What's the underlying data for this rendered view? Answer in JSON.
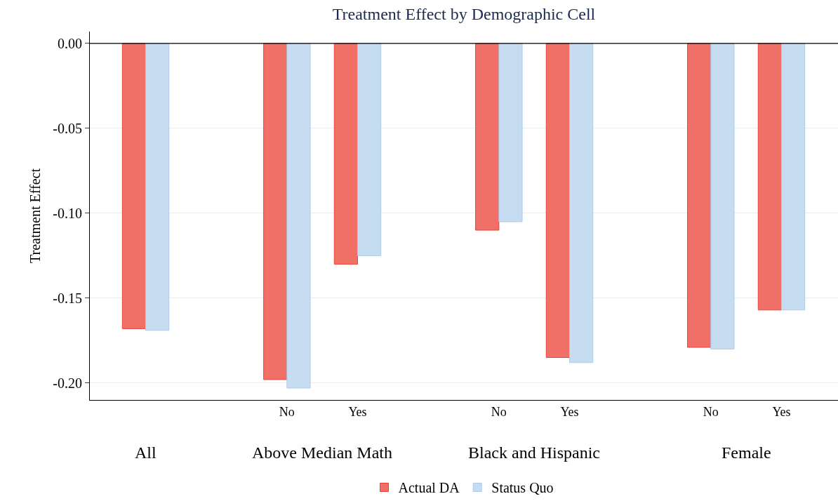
{
  "chart_data": {
    "type": "bar",
    "title": "Treatment Effect by Demographic Cell",
    "ylabel": "Treatment Effect",
    "categories": [
      null,
      "No",
      "Yes",
      "No",
      "Yes",
      "No",
      "Yes"
    ],
    "annotations": [
      "All",
      "Above Median Math",
      "Black and Hispanic",
      "Female"
    ],
    "series": [
      {
        "name": "Actual DA",
        "color": "#f07067",
        "values": [
          -0.168,
          -0.198,
          -0.13,
          -0.11,
          -0.185,
          -0.179,
          -0.157
        ]
      },
      {
        "name": "Status Quo",
        "color": "#c6dcf0",
        "values": [
          -0.169,
          -0.203,
          -0.125,
          -0.105,
          -0.188,
          -0.18,
          -0.157
        ]
      }
    ],
    "ylim": [
      -0.21,
      0.007
    ],
    "yticks": [
      {
        "value": 0,
        "label": "0.00"
      },
      {
        "value": -0.05,
        "label": "-0.05"
      },
      {
        "value": -0.1,
        "label": "-0.10"
      },
      {
        "value": -0.15,
        "label": "-0.15"
      },
      {
        "value": -0.2,
        "label": "-0.20"
      }
    ],
    "ref_lines": [
      {
        "axis": "y",
        "value": 0
      }
    ],
    "grid": "y",
    "legend": "bottom"
  }
}
